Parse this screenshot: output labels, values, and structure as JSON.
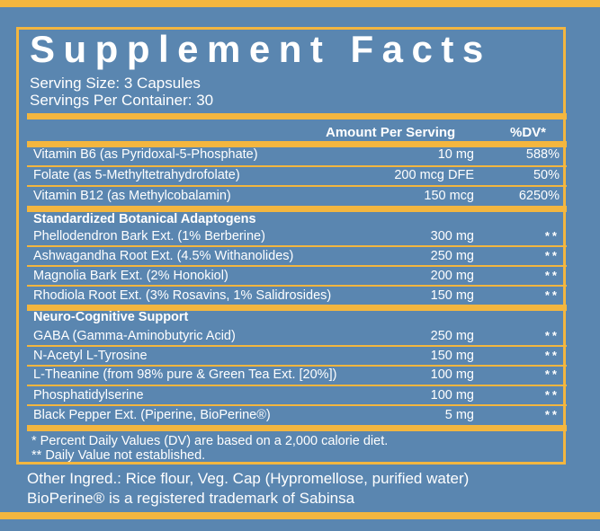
{
  "title": "Supplement Facts",
  "serving_size": "Serving Size: 3 Capsules",
  "servings_per_container": "Servings Per Container: 30",
  "header": {
    "amount": "Amount Per Serving",
    "dv": "%DV*"
  },
  "vitamins": [
    {
      "name": "Vitamin B6 (as Pyridoxal-5-Phosphate)",
      "amount": "10 mg",
      "dv": "588%"
    },
    {
      "name": "Folate (as 5-Methyltetrahydrofolate)",
      "amount": "200 mcg DFE",
      "dv": "50%"
    },
    {
      "name": "Vitamin B12 (as Methylcobalamin)",
      "amount": "150 mcg",
      "dv": "6250%"
    }
  ],
  "sections": [
    {
      "title": "Standardized Botanical Adaptogens",
      "items": [
        {
          "name": "Phellodendron Bark Ext. (1% Berberine)",
          "amount": "300 mg",
          "dv": "**"
        },
        {
          "name": "Ashwagandha Root Ext. (4.5% Withanolides)",
          "amount": "250 mg",
          "dv": "**"
        },
        {
          "name": "Magnolia Bark Ext. (2% Honokiol)",
          "amount": "200 mg",
          "dv": "**"
        },
        {
          "name": "Rhodiola Root Ext. (3% Rosavins, 1% Salidrosides)",
          "amount": "150 mg",
          "dv": "**"
        }
      ]
    },
    {
      "title": "Neuro-Cognitive Support",
      "items": [
        {
          "name": "GABA (Gamma-Aminobutyric Acid)",
          "amount": "250 mg",
          "dv": "**"
        },
        {
          "name": "N-Acetyl L-Tyrosine",
          "amount": "150 mg",
          "dv": "**"
        },
        {
          "name": "L-Theanine (from 98% pure & Green Tea Ext. [20%])",
          "amount": "100 mg",
          "dv": "**"
        },
        {
          "name": "Phosphatidylserine",
          "amount": "100 mg",
          "dv": "**"
        },
        {
          "name": "Black Pepper Ext. (Piperine, BioPerine®)",
          "amount": "5 mg",
          "dv": "**"
        }
      ]
    }
  ],
  "footnotes": [
    "* Percent Daily Values (DV) are based on a 2,000 calorie diet.",
    "** Daily Value not established."
  ],
  "other_ingredients": "Other Ingred.: Rice flour, Veg. Cap (Hypromellose, purified water)",
  "trademark": "BioPerine® is a registered trademark of Sabinsa",
  "colors": {
    "background": "#5a86b0",
    "accent": "#f3b63f",
    "text": "#ffffff"
  }
}
